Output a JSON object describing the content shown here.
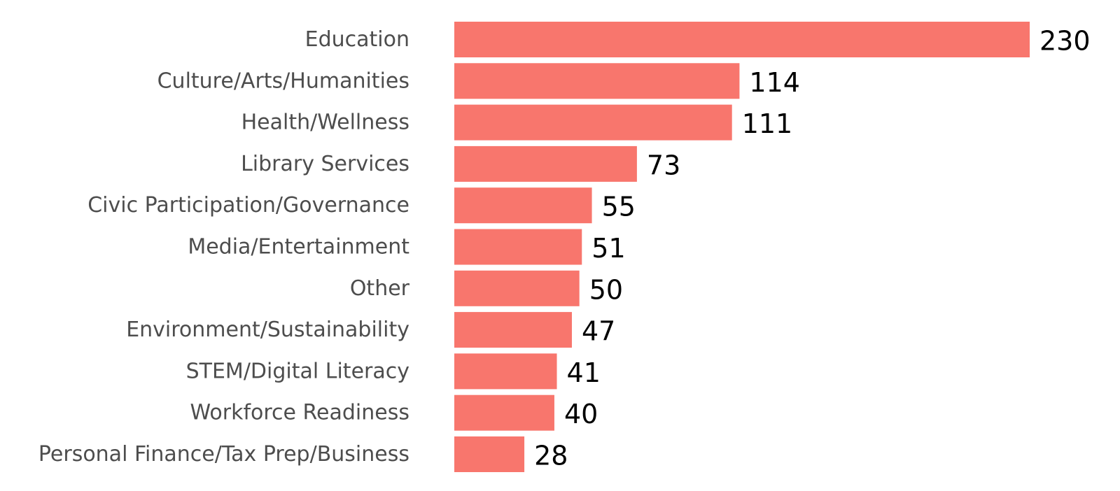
{
  "chart_data": {
    "type": "bar",
    "orientation": "horizontal",
    "categories": [
      "Education",
      "Culture/Arts/Humanities",
      "Health/Wellness",
      "Library Services",
      "Civic Participation/Governance",
      "Media/Entertainment",
      "Other",
      "Environment/Sustainability",
      "STEM/Digital Literacy",
      "Workforce Readiness",
      "Personal Finance/Tax Prep/Business"
    ],
    "values": [
      230,
      114,
      111,
      73,
      55,
      51,
      50,
      47,
      41,
      40,
      28
    ],
    "data_labels": [
      "230",
      "114",
      "111",
      "73",
      "55",
      "51",
      "50",
      "47",
      "41",
      "40",
      "28"
    ],
    "title": "",
    "xlabel": "",
    "ylabel": "",
    "xlim": [
      0,
      230
    ],
    "grid": false,
    "legend": "none",
    "bar_color": "#f8766d"
  }
}
